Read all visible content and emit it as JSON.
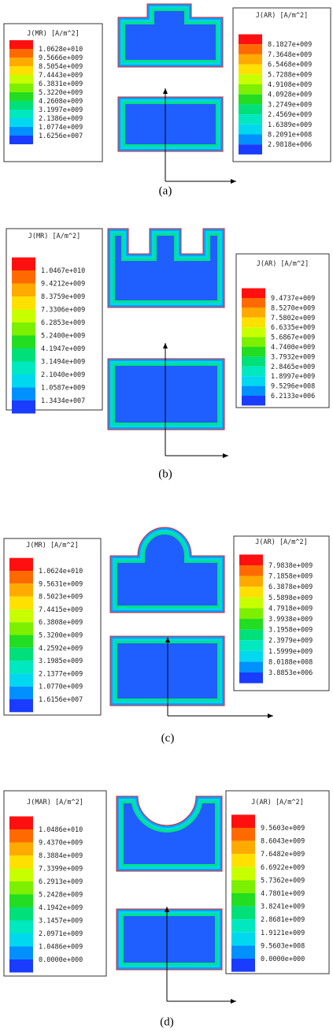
{
  "panels": [
    {
      "caption": "(a)",
      "legend_left": {
        "title": "J(MR) [A/m^2]",
        "values": [
          "1.0628e+010",
          "9.5666e+009",
          "8.5054e+009",
          "7.4443e+009",
          "6.3831e+009",
          "5.3220e+009",
          "4.2608e+009",
          "3.1997e+009",
          "2.1386e+009",
          "1.0774e+009",
          "1.6256e+007"
        ]
      },
      "legend_right": {
        "title": "J(AR) [A/m^2]",
        "values": [
          "8.1827e+009",
          "7.3648e+009",
          "6.5468e+009",
          "5.7288e+009",
          "4.9108e+009",
          "4.0928e+009",
          "3.2749e+009",
          "2.4569e+009",
          "1.6389e+009",
          "8.2091e+008",
          "2.9818e+006"
        ]
      }
    },
    {
      "caption": "(b)",
      "legend_left": {
        "title": "J(MR) [A/m^2]",
        "values": [
          "1.0467e+010",
          "9.4212e+009",
          "8.3759e+009",
          "7.3306e+009",
          "6.2853e+009",
          "5.2400e+009",
          "4.1947e+009",
          "3.1494e+009",
          "2.1040e+009",
          "1.0587e+009",
          "1.3434e+007"
        ]
      },
      "legend_right": {
        "title": "J(AR) [A/m^2]",
        "values": [
          "9.4737e+009",
          "8.5270e+009",
          "7.5802e+009",
          "6.6335e+009",
          "5.6867e+009",
          "4.7400e+009",
          "3.7932e+009",
          "2.8465e+009",
          "1.8997e+009",
          "9.5296e+008",
          "6.2133e+006"
        ]
      }
    },
    {
      "caption": "(c)",
      "legend_left": {
        "title": "J(MR) [A/m^2]",
        "values": [
          "1.0624e+010",
          "9.5631e+009",
          "8.5023e+009",
          "7.4415e+009",
          "6.3808e+009",
          "5.3200e+009",
          "4.2592e+009",
          "3.1985e+009",
          "2.1377e+009",
          "1.0770e+009",
          "1.6156e+007"
        ]
      },
      "legend_right": {
        "title": "J(AR) [A/m^2]",
        "values": [
          "7.9838e+009",
          "7.1858e+009",
          "6.3878e+009",
          "5.5898e+009",
          "4.7918e+009",
          "3.9938e+009",
          "3.1958e+009",
          "2.3979e+009",
          "1.5999e+009",
          "8.0188e+008",
          "3.8853e+006"
        ]
      }
    },
    {
      "caption": "(d)",
      "legend_left": {
        "title": "J(MAR) [A/m^2]",
        "values": [
          "1.0486e+010",
          "9.4370e+009",
          "8.3884e+009",
          "7.3399e+009",
          "6.2913e+009",
          "5.2428e+009",
          "4.1942e+009",
          "3.1457e+009",
          "2.0971e+009",
          "1.0486e+009",
          "0.0000e+000"
        ]
      },
      "legend_right": {
        "title": "J(AR) [A/m^2]",
        "values": [
          "9.5603e+009",
          "8.6043e+009",
          "7.6482e+009",
          "6.6922e+009",
          "5.7362e+009",
          "4.7801e+009",
          "3.8241e+009",
          "2.8681e+009",
          "1.9121e+009",
          "9.5603e+008",
          "0.0000e+000"
        ]
      }
    }
  ]
}
